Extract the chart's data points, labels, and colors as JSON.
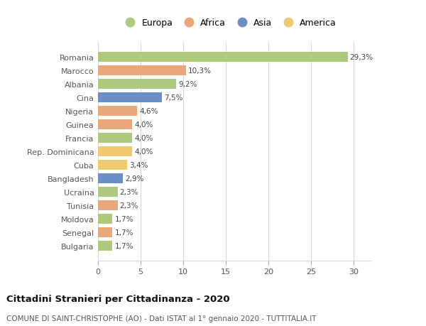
{
  "categories": [
    "Romania",
    "Marocco",
    "Albania",
    "Cina",
    "Nigeria",
    "Guinea",
    "Francia",
    "Rep. Dominicana",
    "Cuba",
    "Bangladesh",
    "Ucraina",
    "Tunisia",
    "Moldova",
    "Senegal",
    "Bulgaria"
  ],
  "values": [
    29.3,
    10.3,
    9.2,
    7.5,
    4.6,
    4.0,
    4.0,
    4.0,
    3.4,
    2.9,
    2.3,
    2.3,
    1.7,
    1.7,
    1.7
  ],
  "labels": [
    "29,3%",
    "10,3%",
    "9,2%",
    "7,5%",
    "4,6%",
    "4,0%",
    "4,0%",
    "4,0%",
    "3,4%",
    "2,9%",
    "2,3%",
    "2,3%",
    "1,7%",
    "1,7%",
    "1,7%"
  ],
  "colors": [
    "#adc97e",
    "#e8a87c",
    "#adc97e",
    "#6b8fc2",
    "#e8a87c",
    "#e8a87c",
    "#adc97e",
    "#f0c96e",
    "#f0c96e",
    "#6b8fc2",
    "#adc97e",
    "#e8a87c",
    "#adc97e",
    "#e8a87c",
    "#adc97e"
  ],
  "legend_labels": [
    "Europa",
    "Africa",
    "Asia",
    "America"
  ],
  "legend_colors": [
    "#adc97e",
    "#e8a87c",
    "#6b8fc2",
    "#f0c96e"
  ],
  "title": "Cittadini Stranieri per Cittadinanza - 2020",
  "subtitle": "COMUNE DI SAINT-CHRISTOPHE (AO) - Dati ISTAT al 1° gennaio 2020 - TUTTITALIA.IT",
  "xlim": [
    0,
    32
  ],
  "xticks": [
    0,
    5,
    10,
    15,
    20,
    25,
    30
  ],
  "background_color": "#ffffff",
  "grid_color": "#d8d8d8"
}
